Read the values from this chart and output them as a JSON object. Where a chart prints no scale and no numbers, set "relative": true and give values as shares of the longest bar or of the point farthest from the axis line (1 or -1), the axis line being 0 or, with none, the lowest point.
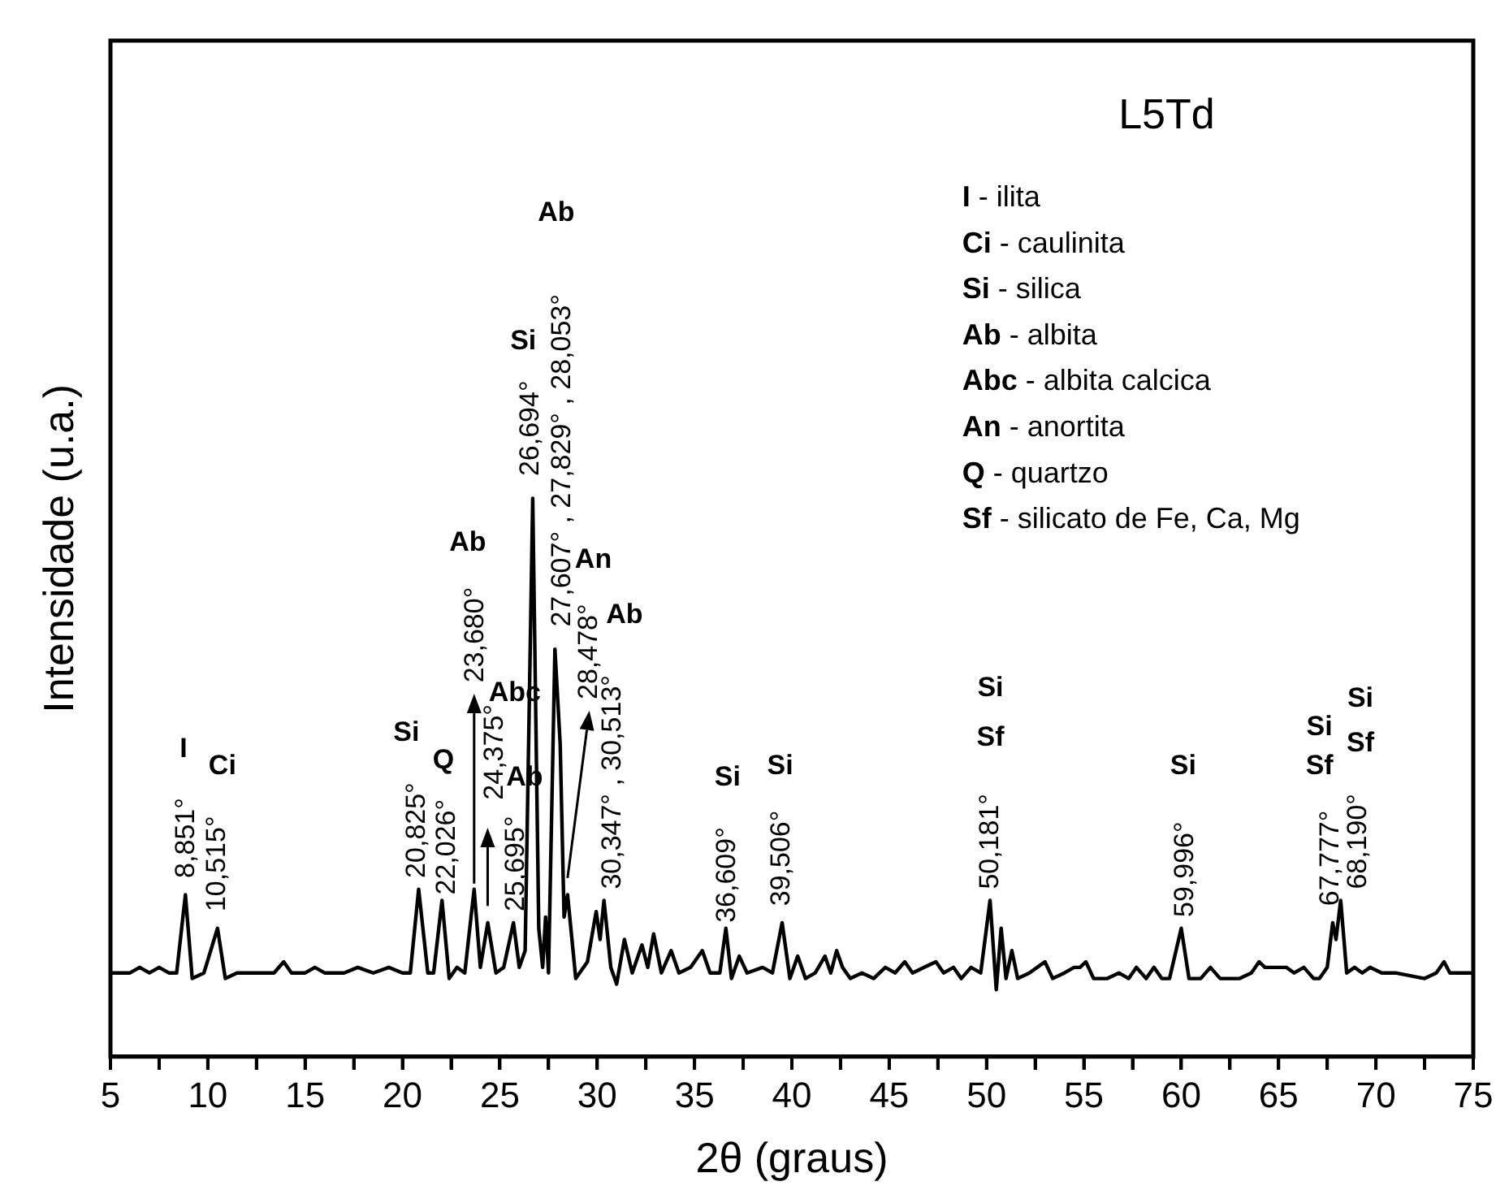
{
  "chart_data": {
    "type": "line",
    "title": "L5Td",
    "xlabel": "2θ (graus)",
    "ylabel": "Intensidade (u.a.)",
    "relative": true,
    "grid": false,
    "legend": false,
    "marker": "none",
    "line_style": "solid",
    "xlim": [
      5,
      75
    ],
    "xticks": [
      5,
      {
        "value": 7.5,
        "label": null
      },
      10,
      {
        "value": 12.5,
        "label": null
      },
      15,
      {
        "value": 17.5,
        "label": null
      },
      20,
      {
        "value": 22.5,
        "label": null
      },
      25,
      {
        "value": 27.5,
        "label": null
      },
      30,
      {
        "value": 32.5,
        "label": null
      },
      35,
      {
        "value": 37.5,
        "label": null
      },
      40,
      {
        "value": 42.5,
        "label": null
      },
      45,
      {
        "value": 47.5,
        "label": null
      },
      50,
      {
        "value": 52.5,
        "label": null
      },
      55,
      {
        "value": 57.5,
        "label": null
      },
      60,
      {
        "value": 62.5,
        "label": null
      },
      65,
      {
        "value": 67.5,
        "label": null
      },
      70,
      {
        "value": 72.5,
        "label": null
      },
      75
    ],
    "series": [
      {
        "color": "#000000",
        "x": [
          5,
          6,
          6.5,
          7,
          7.5,
          8,
          8.4,
          8.85,
          9.2,
          9.8,
          10.5,
          10.9,
          11.5,
          12.5,
          13.4,
          13.9,
          14.3,
          15,
          15.5,
          16,
          17,
          17.7,
          18.5,
          19.3,
          20,
          20.4,
          20.83,
          21.3,
          21.6,
          22.03,
          22.4,
          22.8,
          23.2,
          23.68,
          24,
          24.38,
          24.8,
          25.2,
          25.7,
          26,
          26.3,
          26.69,
          27,
          27.2,
          27.35,
          27.5,
          27.83,
          28.1,
          28.3,
          28.48,
          28.9,
          29.5,
          29.95,
          30.15,
          30.35,
          30.7,
          31,
          31.4,
          31.8,
          32.3,
          32.6,
          32.9,
          33.3,
          33.8,
          34.2,
          34.8,
          35.4,
          35.8,
          36.3,
          36.61,
          36.9,
          37.3,
          37.7,
          38.5,
          39,
          39.5,
          39.9,
          40.3,
          40.7,
          41.2,
          41.7,
          42,
          42.3,
          42.6,
          43,
          43.6,
          44.2,
          44.8,
          45.3,
          45.8,
          46.2,
          46.8,
          47.4,
          47.8,
          48.3,
          48.7,
          49.2,
          49.7,
          50.18,
          50.5,
          50.75,
          51,
          51.3,
          51.6,
          52.2,
          52.6,
          53,
          53.4,
          54,
          54.5,
          54.8,
          55.1,
          55.5,
          56.2,
          56.8,
          57.3,
          57.7,
          58.2,
          58.6,
          59,
          59.4,
          60,
          60.4,
          61,
          61.5,
          62,
          63,
          63.6,
          64,
          64.3,
          64.6,
          65,
          65.4,
          65.8,
          66.3,
          66.8,
          67.1,
          67.5,
          67.78,
          67.95,
          68.19,
          68.5,
          68.9,
          69.3,
          69.7,
          70.3,
          71,
          72.5,
          73.1,
          73.5,
          73.8,
          74.3,
          75
        ],
        "values": [
          0.15,
          0.15,
          0.16,
          0.15,
          0.16,
          0.15,
          0.15,
          0.29,
          0.14,
          0.15,
          0.23,
          0.14,
          0.15,
          0.15,
          0.15,
          0.17,
          0.15,
          0.15,
          0.16,
          0.15,
          0.15,
          0.16,
          0.15,
          0.16,
          0.15,
          0.15,
          0.3,
          0.15,
          0.15,
          0.28,
          0.14,
          0.16,
          0.15,
          0.3,
          0.16,
          0.24,
          0.15,
          0.16,
          0.24,
          0.16,
          0.19,
          1,
          0.23,
          0.16,
          0.25,
          0.15,
          0.73,
          0.56,
          0.25,
          0.29,
          0.14,
          0.17,
          0.26,
          0.21,
          0.28,
          0.16,
          0.13,
          0.21,
          0.15,
          0.2,
          0.16,
          0.22,
          0.15,
          0.19,
          0.15,
          0.16,
          0.19,
          0.15,
          0.15,
          0.23,
          0.14,
          0.18,
          0.15,
          0.16,
          0.15,
          0.24,
          0.14,
          0.18,
          0.14,
          0.15,
          0.18,
          0.15,
          0.19,
          0.16,
          0.14,
          0.15,
          0.14,
          0.16,
          0.15,
          0.17,
          0.15,
          0.16,
          0.17,
          0.15,
          0.16,
          0.14,
          0.16,
          0.15,
          0.28,
          0.12,
          0.23,
          0.14,
          0.19,
          0.14,
          0.15,
          0.16,
          0.17,
          0.14,
          0.15,
          0.16,
          0.16,
          0.17,
          0.14,
          0.14,
          0.15,
          0.14,
          0.16,
          0.14,
          0.16,
          0.14,
          0.14,
          0.23,
          0.14,
          0.14,
          0.16,
          0.14,
          0.14,
          0.15,
          0.17,
          0.16,
          0.16,
          0.16,
          0.16,
          0.15,
          0.16,
          0.14,
          0.14,
          0.16,
          0.24,
          0.21,
          0.28,
          0.15,
          0.16,
          0.15,
          0.16,
          0.15,
          0.15,
          0.14,
          0.15,
          0.17,
          0.15,
          0.15,
          0.15
        ]
      }
    ],
    "annotations": [
      "I",
      "8,851°",
      "Ci",
      "10,515°",
      "Si",
      "20,825°",
      "Q",
      "22,026°",
      "Ab",
      "23,680°",
      "Abc",
      "24,375°",
      "Ab",
      "25,695°",
      "Si",
      "26,694°",
      "Ab",
      "27,607° , 27,829° , 28,053°",
      "An",
      "28,478°",
      "Ab",
      "30,347° , 30,513°",
      "Si",
      "36,609°",
      "Si",
      "39,506°",
      "Si",
      "Sf",
      "50,181°",
      "Si",
      "59,996°",
      "Si",
      "Sf",
      "67,777°",
      "Si",
      "Sf",
      "68,190°",
      "I - ilita",
      "Ci - caulinita",
      "Si - silica",
      "Ab - albita",
      "Abc - albita calcica",
      "An - anortita",
      "Q - quartzo",
      "Sf - silicato de Fe, Ca, Mg"
    ]
  }
}
